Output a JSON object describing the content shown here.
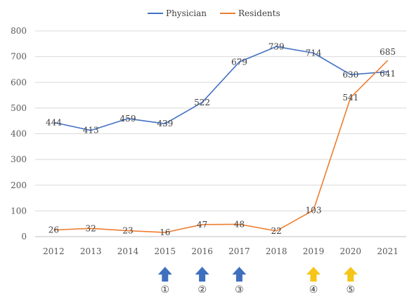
{
  "chart_data": {
    "type": "line",
    "categories": [
      "2012",
      "2013",
      "2014",
      "2015",
      "2016",
      "2017",
      "2018",
      "2019",
      "2020",
      "2021"
    ],
    "series": [
      {
        "name": "Physician",
        "color": "#4472c4",
        "values": [
          444,
          413,
          459,
          439,
          522,
          679,
          739,
          714,
          630,
          641
        ]
      },
      {
        "name": "Residents",
        "color": "#ed7d31",
        "values": [
          26,
          32,
          23,
          16,
          47,
          48,
          22,
          103,
          541,
          685
        ]
      }
    ],
    "yticks": [
      "0",
      "100",
      "200",
      "300",
      "400",
      "500",
      "600",
      "700",
      "800"
    ],
    "ylim": [
      0,
      800
    ],
    "grid": "horizontal",
    "legend": "top-center",
    "title": "",
    "xlabel": "",
    "ylabel": "",
    "annotations": [
      {
        "category": "2015",
        "label": "①",
        "color": "#3f6fbf"
      },
      {
        "category": "2016",
        "label": "②",
        "color": "#3f6fbf"
      },
      {
        "category": "2017",
        "label": "③",
        "color": "#3f6fbf"
      },
      {
        "category": "2019",
        "label": "④",
        "color": "#f5c518"
      },
      {
        "category": "2020",
        "label": "⑤",
        "color": "#f5c518"
      }
    ]
  }
}
